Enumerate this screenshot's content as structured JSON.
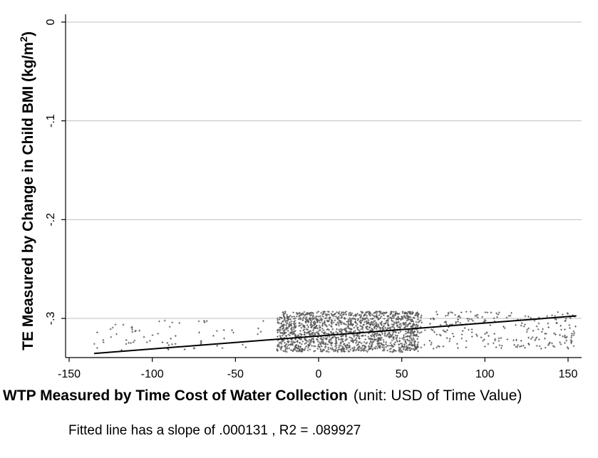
{
  "chart_data": {
    "type": "scatter",
    "title": "",
    "xlabel_bold": "WTP Measured by Time Cost of Water Collection",
    "xlabel_unit": "(unit: USD of Time Value)",
    "ylabel": "TE Measured by Change in Child BMI (kg/m",
    "ylabel_superscript": "2",
    "ylabel_close": ")",
    "xlim": [
      -155,
      158
    ],
    "ylim": [
      -0.341,
      0.008
    ],
    "xticks": [
      -150,
      -100,
      -50,
      0,
      50,
      100,
      150
    ],
    "xtick_labels": [
      "-150",
      "-100",
      "-50",
      "0",
      "50",
      "100",
      "150"
    ],
    "yticks": [
      0,
      -0.1,
      -0.2,
      -0.3
    ],
    "ytick_labels": [
      "0",
      "-.1",
      "-.2",
      "-.3"
    ],
    "grid": true,
    "legend": "none",
    "fit_line": {
      "slope": 0.000131,
      "x": [
        -135,
        155
      ],
      "y": [
        -0.3355,
        -0.2975
      ]
    },
    "annotation": "Fitted line has a slope of .000131 , R2 = .089927",
    "colors": {
      "points": "#555555",
      "line": "#000000",
      "grid": "#bfbfbf"
    },
    "points_note": "dense band of small crosses between -0.293 and -0.334, concentrated at x from -25 to 60"
  }
}
